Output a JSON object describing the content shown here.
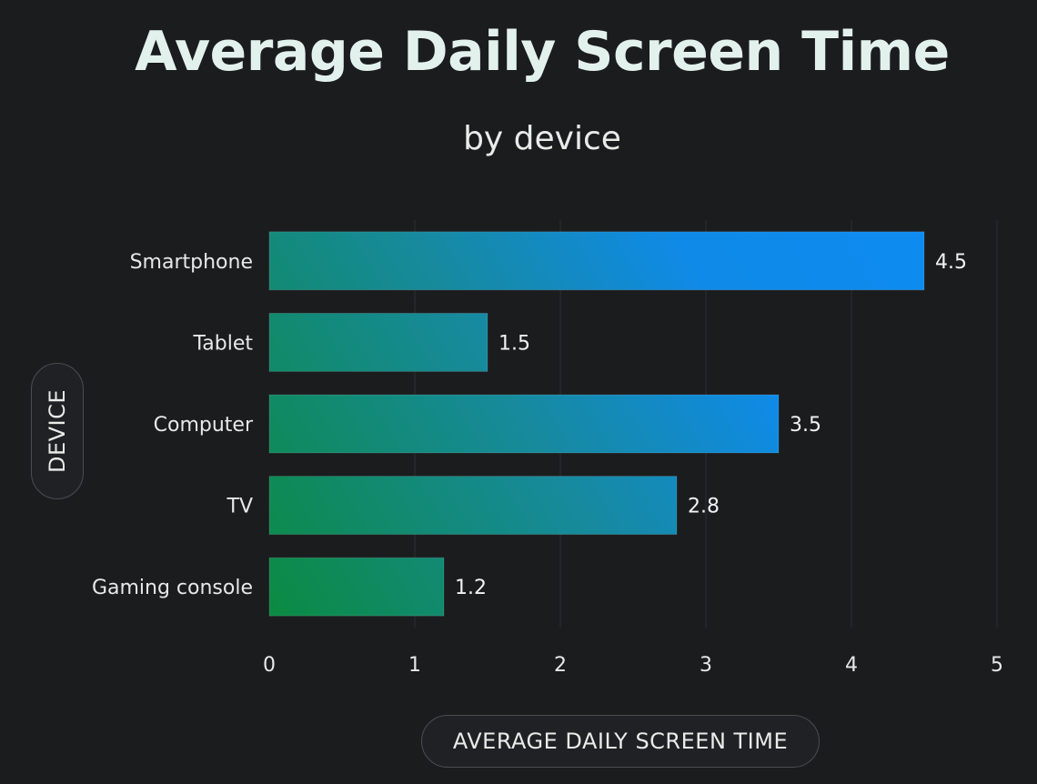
{
  "chart_data": {
    "type": "bar",
    "orientation": "horizontal",
    "title": "Average Daily Screen Time",
    "subtitle": "by device",
    "xlabel": "AVERAGE DAILY SCREEN TIME",
    "ylabel": "DEVICE",
    "categories": [
      "Smartphone",
      "Tablet",
      "Computer",
      "TV",
      "Gaming console"
    ],
    "values": [
      4.5,
      1.5,
      3.5,
      2.8,
      1.2
    ],
    "xlim": [
      0,
      5
    ],
    "xticks": [
      0,
      1,
      2,
      3,
      4,
      5
    ],
    "grid": true,
    "data_labels": true
  },
  "colors": {
    "background": "#1b1c1e",
    "bar_blue": "#0f8ae8",
    "bar_teal": "#17899a",
    "bar_green": "#0c8748",
    "grid": "#2c2e31"
  }
}
